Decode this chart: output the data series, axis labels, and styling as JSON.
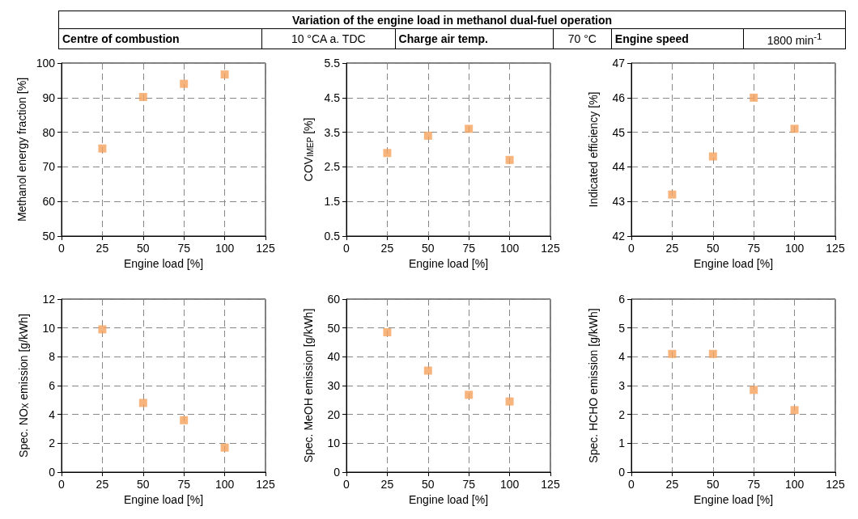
{
  "chart_data": [
    {
      "type": "other",
      "title": "Variation of the engine load in methanol dual-fuel operation",
      "annotations": [
        "Centre of combustion",
        "10  °CA a. TDC",
        "Charge air temp.",
        "70  °C",
        "Engine speed",
        "1800  min$^{-1}$"
      ]
    },
    {
      "type": "scatter",
      "x": [
        25,
        50,
        75,
        100
      ],
      "values": [
        75.3,
        90.2,
        94.0,
        96.7
      ],
      "color": "#f5a35c",
      "marker": "square",
      "xlabel": "Engine load [%]",
      "ylabel": "Methanol energy fraction [%]",
      "xlim": [
        0,
        125
      ],
      "xticks": [
        0,
        25,
        50,
        75,
        100,
        125
      ],
      "ylim": [
        50,
        100
      ],
      "yticks": [
        50,
        60,
        70,
        80,
        90,
        100
      ],
      "grid": true
    },
    {
      "type": "scatter",
      "x": [
        25,
        50,
        75,
        100
      ],
      "values": [
        2.9,
        3.4,
        3.6,
        2.7
      ],
      "color": "#f5a35c",
      "marker": "square",
      "xlabel": "Engine load [%]",
      "ylabel": "COV$_{IMEP}$ [%]",
      "xlim": [
        0,
        125
      ],
      "xticks": [
        0,
        25,
        50,
        75,
        100,
        125
      ],
      "ylim": [
        0.5,
        5.5
      ],
      "yticks": [
        0.5,
        1.5,
        2.5,
        3.5,
        4.5,
        5.5
      ],
      "grid": true
    },
    {
      "type": "scatter",
      "x": [
        25,
        50,
        75,
        100
      ],
      "values": [
        43.2,
        44.3,
        46.0,
        45.1
      ],
      "color": "#f5a35c",
      "marker": "square",
      "xlabel": "Engine load [%]",
      "ylabel": "Indicated efficiency [%]",
      "xlim": [
        0,
        125
      ],
      "xticks": [
        0,
        25,
        50,
        75,
        100,
        125
      ],
      "ylim": [
        42,
        47
      ],
      "yticks": [
        42,
        43,
        44,
        45,
        46,
        47
      ],
      "grid": true
    },
    {
      "type": "scatter",
      "x": [
        25,
        50,
        75,
        100
      ],
      "values": [
        9.9,
        4.8,
        3.6,
        1.7
      ],
      "color": "#f5a35c",
      "marker": "square",
      "xlabel": "Engine load [%]",
      "ylabel": "Spec. NO$_{X}$ emission [g/kWh]",
      "xlim": [
        0,
        125
      ],
      "xticks": [
        0,
        25,
        50,
        75,
        100,
        125
      ],
      "ylim": [
        0,
        12
      ],
      "yticks": [
        0,
        2,
        4,
        6,
        8,
        10,
        12
      ],
      "grid": true
    },
    {
      "type": "scatter",
      "x": [
        25,
        50,
        75,
        100
      ],
      "values": [
        48.5,
        35.2,
        26.8,
        24.5
      ],
      "color": "#f5a35c",
      "marker": "square",
      "xlabel": "Engine load [%]",
      "ylabel": "Spec. MeOH emission [g/kWh]",
      "xlim": [
        0,
        125
      ],
      "xticks": [
        0,
        25,
        50,
        75,
        100,
        125
      ],
      "ylim": [
        0,
        60
      ],
      "yticks": [
        0,
        10,
        20,
        30,
        40,
        50,
        60
      ],
      "grid": true
    },
    {
      "type": "scatter",
      "x": [
        25,
        50,
        75,
        100
      ],
      "values": [
        4.1,
        4.1,
        2.85,
        2.15
      ],
      "color": "#f5a35c",
      "marker": "square",
      "xlabel": "Engine load [%]",
      "ylabel": "Spec. HCHO emission [g/kWh]",
      "xlim": [
        0,
        125
      ],
      "xticks": [
        0,
        25,
        50,
        75,
        100,
        125
      ],
      "ylim": [
        0,
        6
      ],
      "yticks": [
        0,
        1,
        2,
        3,
        4,
        5,
        6
      ],
      "grid": true
    }
  ]
}
